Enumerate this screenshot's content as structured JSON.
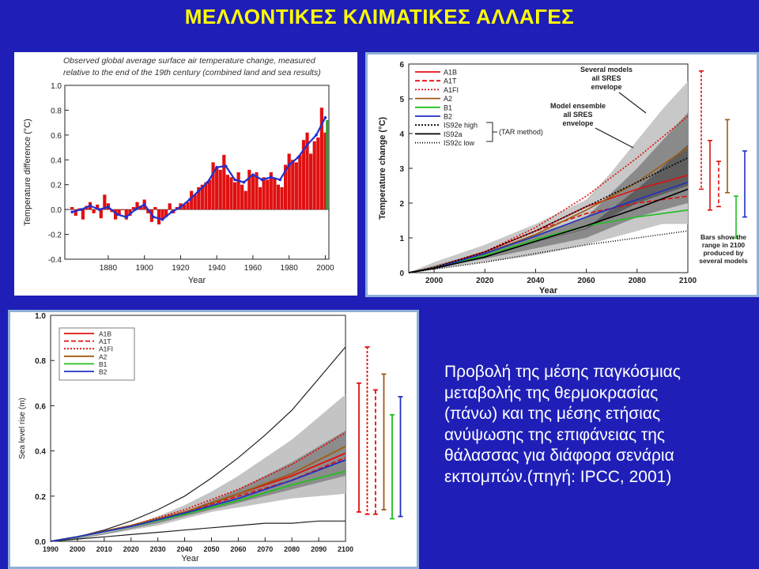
{
  "page": {
    "title": "ΜΕΛΛΟΝΤΙΚΕΣ ΚΛΙΜΑΤΙΚΕΣ ΑΛΛΑΓΕΣ",
    "caption_lines": [
      "Προβολή της μέσης παγκόσμιας",
      "μεταβολής της θερμοκρασίας",
      "(πάνω) και της μέσης ετήσιας",
      "ανύψωσης της επιφάνειας της",
      "θάλασσας για διάφορα σενάρια",
      "εκπομπών.(πηγή: IPCC, 2001)"
    ]
  },
  "colors": {
    "background": "#1f1fb8",
    "title": "#ffff00",
    "caption": "#ffffff",
    "bar": "#e01010",
    "smooth": "#2030d0"
  },
  "chart_data": [
    {
      "type": "bar",
      "title": "Observed global average surface air temperature change, measured relative to the end of the 19th century (combined land and sea results)",
      "title_lines": [
        "Observed global average surface air temperature change, measured",
        "relative to the end of the 19th century (combined land and sea results)"
      ],
      "xlabel": "Year",
      "ylabel": "Temperature difference (°C)",
      "xlim": [
        1856,
        2002
      ],
      "ylim": [
        -0.4,
        1.0
      ],
      "xticks": [
        1880,
        1900,
        1920,
        1940,
        1960,
        1980,
        2000
      ],
      "yticks": [
        "-0.4",
        "-0.2",
        "0.0",
        "0.2",
        "0.4",
        "0.6",
        "0.8",
        "1.0"
      ],
      "bar_values": [
        {
          "x": 1860,
          "y": 0.02
        },
        {
          "x": 1862,
          "y": -0.05
        },
        {
          "x": 1864,
          "y": 0.01
        },
        {
          "x": 1866,
          "y": -0.08
        },
        {
          "x": 1868,
          "y": 0.03
        },
        {
          "x": 1870,
          "y": 0.06
        },
        {
          "x": 1872,
          "y": -0.03
        },
        {
          "x": 1874,
          "y": 0.04
        },
        {
          "x": 1876,
          "y": -0.07
        },
        {
          "x": 1878,
          "y": 0.12
        },
        {
          "x": 1880,
          "y": 0.05
        },
        {
          "x": 1882,
          "y": -0.02
        },
        {
          "x": 1884,
          "y": -0.08
        },
        {
          "x": 1886,
          "y": -0.05
        },
        {
          "x": 1888,
          "y": 0.0
        },
        {
          "x": 1890,
          "y": -0.08
        },
        {
          "x": 1892,
          "y": -0.05
        },
        {
          "x": 1894,
          "y": 0.02
        },
        {
          "x": 1896,
          "y": 0.06
        },
        {
          "x": 1898,
          "y": 0.03
        },
        {
          "x": 1900,
          "y": 0.08
        },
        {
          "x": 1902,
          "y": -0.03
        },
        {
          "x": 1904,
          "y": -0.1
        },
        {
          "x": 1906,
          "y": 0.02
        },
        {
          "x": 1908,
          "y": -0.12
        },
        {
          "x": 1910,
          "y": -0.08
        },
        {
          "x": 1912,
          "y": -0.06
        },
        {
          "x": 1914,
          "y": 0.05
        },
        {
          "x": 1916,
          "y": -0.03
        },
        {
          "x": 1918,
          "y": 0.02
        },
        {
          "x": 1920,
          "y": 0.05
        },
        {
          "x": 1922,
          "y": 0.04
        },
        {
          "x": 1924,
          "y": 0.06
        },
        {
          "x": 1926,
          "y": 0.15
        },
        {
          "x": 1928,
          "y": 0.12
        },
        {
          "x": 1930,
          "y": 0.18
        },
        {
          "x": 1932,
          "y": 0.2
        },
        {
          "x": 1934,
          "y": 0.22
        },
        {
          "x": 1936,
          "y": 0.24
        },
        {
          "x": 1938,
          "y": 0.38
        },
        {
          "x": 1940,
          "y": 0.34
        },
        {
          "x": 1942,
          "y": 0.32
        },
        {
          "x": 1944,
          "y": 0.44
        },
        {
          "x": 1946,
          "y": 0.28
        },
        {
          "x": 1948,
          "y": 0.26
        },
        {
          "x": 1950,
          "y": 0.22
        },
        {
          "x": 1952,
          "y": 0.3
        },
        {
          "x": 1954,
          "y": 0.2
        },
        {
          "x": 1956,
          "y": 0.15
        },
        {
          "x": 1958,
          "y": 0.32
        },
        {
          "x": 1960,
          "y": 0.28
        },
        {
          "x": 1962,
          "y": 0.3
        },
        {
          "x": 1964,
          "y": 0.18
        },
        {
          "x": 1966,
          "y": 0.26
        },
        {
          "x": 1968,
          "y": 0.24
        },
        {
          "x": 1970,
          "y": 0.3
        },
        {
          "x": 1972,
          "y": 0.25
        },
        {
          "x": 1974,
          "y": 0.2
        },
        {
          "x": 1976,
          "y": 0.18
        },
        {
          "x": 1978,
          "y": 0.36
        },
        {
          "x": 1980,
          "y": 0.45
        },
        {
          "x": 1982,
          "y": 0.4
        },
        {
          "x": 1984,
          "y": 0.38
        },
        {
          "x": 1986,
          "y": 0.44
        },
        {
          "x": 1988,
          "y": 0.56
        },
        {
          "x": 1990,
          "y": 0.62
        },
        {
          "x": 1992,
          "y": 0.45
        },
        {
          "x": 1994,
          "y": 0.55
        },
        {
          "x": 1996,
          "y": 0.58
        },
        {
          "x": 1998,
          "y": 0.82
        },
        {
          "x": 2000,
          "y": 0.62
        }
      ],
      "smoothed": [
        {
          "x": 1860,
          "y": -0.02
        },
        {
          "x": 1865,
          "y": 0.0
        },
        {
          "x": 1870,
          "y": 0.03
        },
        {
          "x": 1875,
          "y": 0.0
        },
        {
          "x": 1880,
          "y": 0.02
        },
        {
          "x": 1885,
          "y": -0.04
        },
        {
          "x": 1890,
          "y": -0.06
        },
        {
          "x": 1895,
          "y": 0.0
        },
        {
          "x": 1900,
          "y": 0.04
        },
        {
          "x": 1905,
          "y": -0.06
        },
        {
          "x": 1910,
          "y": -0.08
        },
        {
          "x": 1915,
          "y": -0.02
        },
        {
          "x": 1920,
          "y": 0.02
        },
        {
          "x": 1925,
          "y": 0.08
        },
        {
          "x": 1930,
          "y": 0.15
        },
        {
          "x": 1935,
          "y": 0.22
        },
        {
          "x": 1940,
          "y": 0.34
        },
        {
          "x": 1945,
          "y": 0.35
        },
        {
          "x": 1950,
          "y": 0.24
        },
        {
          "x": 1955,
          "y": 0.22
        },
        {
          "x": 1960,
          "y": 0.28
        },
        {
          "x": 1965,
          "y": 0.24
        },
        {
          "x": 1970,
          "y": 0.26
        },
        {
          "x": 1975,
          "y": 0.24
        },
        {
          "x": 1980,
          "y": 0.36
        },
        {
          "x": 1985,
          "y": 0.42
        },
        {
          "x": 1990,
          "y": 0.52
        },
        {
          "x": 1995,
          "y": 0.6
        },
        {
          "x": 2000,
          "y": 0.74
        }
      ],
      "last_bar": {
        "x": 2001,
        "y": 0.72,
        "color": "#30a030"
      }
    },
    {
      "type": "line",
      "xlabel": "Year",
      "ylabel": "Temperature change (°C)",
      "xlim": [
        1990,
        2100
      ],
      "ylim": [
        0,
        6
      ],
      "xticks": [
        2000,
        2020,
        2040,
        2060,
        2080,
        2100
      ],
      "yticks": [
        0,
        1,
        2,
        3,
        4,
        5,
        6
      ],
      "legend": [
        {
          "name": "A1B",
          "color": "#e01010",
          "dash": ""
        },
        {
          "name": "A1T",
          "color": "#e01010",
          "dash": "6,3"
        },
        {
          "name": "A1FI",
          "color": "#e01010",
          "dash": "2,2"
        },
        {
          "name": "A2",
          "color": "#a05a10",
          "dash": ""
        },
        {
          "name": "B1",
          "color": "#20c020",
          "dash": ""
        },
        {
          "name": "B2",
          "color": "#2030c0",
          "dash": ""
        },
        {
          "name": "IS92e high",
          "color": "#000000",
          "dash": "2,2"
        },
        {
          "name": "IS92a",
          "color": "#000000",
          "dash": ""
        },
        {
          "name": "IS92c low",
          "color": "#000000",
          "dash": "1,2"
        }
      ],
      "legend_note": "(TAR method)",
      "annotations": [
        "Several models all SRES envelope",
        "Model ensemble all SRES envelope",
        "Bars show the range in 2100 produced by several models"
      ],
      "outer_envelope": {
        "upper": [
          0,
          0.3,
          0.8,
          1.4,
          2.1,
          2.9,
          3.8,
          4.7,
          5.5
        ],
        "lower": [
          0,
          0.1,
          0.3,
          0.5,
          0.8,
          1.0,
          1.2,
          1.4,
          1.4
        ]
      },
      "inner_envelope": {
        "upper": [
          0,
          0.2,
          0.6,
          1.1,
          1.6,
          2.3,
          3.0,
          3.8,
          4.6
        ],
        "lower": [
          0,
          0.15,
          0.4,
          0.7,
          1.0,
          1.3,
          1.6,
          1.8,
          2.0
        ]
      },
      "envelope_x": [
        1990,
        2000,
        2020,
        2040,
        2060,
        2070,
        2080,
        2090,
        2100
      ],
      "series": [
        {
          "name": "A1B",
          "x": [
            1990,
            2000,
            2020,
            2040,
            2060,
            2080,
            2100
          ],
          "values": [
            0,
            0.15,
            0.6,
            1.2,
            1.9,
            2.4,
            2.8
          ]
        },
        {
          "name": "A1T",
          "x": [
            1990,
            2000,
            2020,
            2040,
            2060,
            2080,
            2100
          ],
          "values": [
            0,
            0.15,
            0.6,
            1.2,
            1.7,
            2.0,
            2.2
          ]
        },
        {
          "name": "A1FI",
          "x": [
            1990,
            2000,
            2020,
            2040,
            2060,
            2080,
            2100
          ],
          "values": [
            0,
            0.15,
            0.6,
            1.3,
            2.2,
            3.3,
            4.5
          ]
        },
        {
          "name": "A2",
          "x": [
            1990,
            2000,
            2020,
            2040,
            2060,
            2080,
            2100
          ],
          "values": [
            0,
            0.15,
            0.55,
            1.1,
            1.8,
            2.6,
            3.6
          ]
        },
        {
          "name": "B1",
          "x": [
            1990,
            2000,
            2020,
            2040,
            2060,
            2080,
            2100
          ],
          "values": [
            0,
            0.12,
            0.5,
            0.95,
            1.35,
            1.6,
            1.8
          ]
        },
        {
          "name": "B2",
          "x": [
            1990,
            2000,
            2020,
            2040,
            2060,
            2080,
            2100
          ],
          "values": [
            0,
            0.13,
            0.55,
            1.05,
            1.6,
            2.1,
            2.6
          ]
        },
        {
          "name": "IS92e high",
          "x": [
            1990,
            2000,
            2020,
            2040,
            2060,
            2080,
            2100
          ],
          "values": [
            0,
            0.15,
            0.6,
            1.2,
            1.9,
            2.6,
            3.3
          ]
        },
        {
          "name": "IS92a",
          "x": [
            1990,
            2000,
            2020,
            2040,
            2060,
            2080,
            2100
          ],
          "values": [
            0,
            0.12,
            0.45,
            0.9,
            1.35,
            1.85,
            2.4
          ]
        },
        {
          "name": "IS92c low",
          "x": [
            1990,
            2000,
            2020,
            2040,
            2060,
            2080,
            2100
          ],
          "values": [
            0,
            0.1,
            0.3,
            0.55,
            0.8,
            1.0,
            1.2
          ]
        }
      ],
      "range_bars_2100": [
        {
          "name": "A1FI",
          "color": "#e01010",
          "dash": "3,2",
          "low": 2.4,
          "high": 5.8
        },
        {
          "name": "A1B",
          "color": "#e01010",
          "dash": "",
          "low": 1.8,
          "high": 3.8
        },
        {
          "name": "A1T",
          "color": "#e01010",
          "dash": "5,3",
          "low": 1.9,
          "high": 3.2
        },
        {
          "name": "A2",
          "color": "#a05a10",
          "dash": "",
          "low": 2.3,
          "high": 4.4
        },
        {
          "name": "B1",
          "color": "#20c020",
          "dash": "",
          "low": 1.0,
          "high": 2.2
        },
        {
          "name": "B2",
          "color": "#2030c0",
          "dash": "",
          "low": 1.6,
          "high": 3.5
        }
      ]
    },
    {
      "type": "line",
      "xlabel": "Year",
      "ylabel": "Sea level rise (m)",
      "xlim": [
        1990,
        2100
      ],
      "ylim": [
        0,
        1.0
      ],
      "xticks": [
        1990,
        2000,
        2010,
        2020,
        2030,
        2040,
        2050,
        2060,
        2070,
        2080,
        2090,
        2100
      ],
      "yticks": [
        "0.0",
        "0.2",
        "0.4",
        "0.6",
        "0.8",
        "1.0"
      ],
      "legend": [
        {
          "name": "A1B",
          "color": "#e01010",
          "dash": ""
        },
        {
          "name": "A1T",
          "color": "#e01010",
          "dash": "6,3"
        },
        {
          "name": "A1FI",
          "color": "#e01010",
          "dash": "2,2"
        },
        {
          "name": "A2",
          "color": "#a05a10",
          "dash": ""
        },
        {
          "name": "B1",
          "color": "#20c020",
          "dash": ""
        },
        {
          "name": "B2",
          "color": "#2030c0",
          "dash": ""
        }
      ],
      "envelope_x": [
        1990,
        2000,
        2010,
        2020,
        2030,
        2040,
        2050,
        2060,
        2070,
        2080,
        2090,
        2100
      ],
      "outer_envelope": {
        "upper": [
          0,
          0.02,
          0.05,
          0.09,
          0.14,
          0.2,
          0.28,
          0.37,
          0.47,
          0.58,
          0.72,
          0.86
        ],
        "lower": [
          0,
          0.01,
          0.02,
          0.03,
          0.04,
          0.05,
          0.06,
          0.07,
          0.08,
          0.08,
          0.09,
          0.09
        ]
      },
      "gray_outer": {
        "upper": [
          0,
          0.02,
          0.04,
          0.07,
          0.11,
          0.16,
          0.22,
          0.29,
          0.37,
          0.45,
          0.55,
          0.65
        ],
        "lower": [
          0,
          0.01,
          0.03,
          0.05,
          0.07,
          0.1,
          0.13,
          0.15,
          0.17,
          0.19,
          0.2,
          0.21
        ]
      },
      "gray_inner": {
        "upper": [
          0,
          0.015,
          0.035,
          0.06,
          0.09,
          0.13,
          0.18,
          0.23,
          0.29,
          0.35,
          0.42,
          0.49
        ],
        "lower": [
          0,
          0.012,
          0.03,
          0.055,
          0.08,
          0.11,
          0.14,
          0.17,
          0.2,
          0.23,
          0.26,
          0.29
        ]
      },
      "series": [
        {
          "name": "A1B",
          "x": [
            1990,
            2000,
            2020,
            2040,
            2060,
            2080,
            2100
          ],
          "values": [
            0,
            0.02,
            0.07,
            0.13,
            0.21,
            0.29,
            0.39
          ]
        },
        {
          "name": "A1T",
          "x": [
            1990,
            2000,
            2020,
            2040,
            2060,
            2080,
            2100
          ],
          "values": [
            0,
            0.02,
            0.07,
            0.13,
            0.2,
            0.27,
            0.37
          ]
        },
        {
          "name": "A1FI",
          "x": [
            1990,
            2000,
            2020,
            2040,
            2060,
            2080,
            2100
          ],
          "values": [
            0,
            0.02,
            0.07,
            0.14,
            0.23,
            0.34,
            0.48
          ]
        },
        {
          "name": "A2",
          "x": [
            1990,
            2000,
            2020,
            2040,
            2060,
            2080,
            2100
          ],
          "values": [
            0,
            0.02,
            0.07,
            0.13,
            0.21,
            0.3,
            0.42
          ]
        },
        {
          "name": "B1",
          "x": [
            1990,
            2000,
            2020,
            2040,
            2060,
            2080,
            2100
          ],
          "values": [
            0,
            0.02,
            0.065,
            0.12,
            0.18,
            0.25,
            0.31
          ]
        },
        {
          "name": "B2",
          "x": [
            1990,
            2000,
            2020,
            2040,
            2060,
            2080,
            2100
          ],
          "values": [
            0,
            0.02,
            0.066,
            0.125,
            0.19,
            0.27,
            0.36
          ]
        }
      ],
      "range_bars_2100": [
        {
          "name": "A1B",
          "color": "#e01010",
          "dash": "",
          "low": 0.13,
          "high": 0.7
        },
        {
          "name": "A1FI",
          "color": "#e01010",
          "dash": "3,2",
          "low": 0.12,
          "high": 0.86
        },
        {
          "name": "A1T",
          "color": "#e01010",
          "dash": "5,3",
          "low": 0.12,
          "high": 0.67
        },
        {
          "name": "A2",
          "color": "#a05a10",
          "dash": "",
          "low": 0.14,
          "high": 0.74
        },
        {
          "name": "B1",
          "color": "#20c020",
          "dash": "",
          "low": 0.1,
          "high": 0.56
        },
        {
          "name": "B2",
          "color": "#2030c0",
          "dash": "",
          "low": 0.11,
          "high": 0.64
        }
      ]
    }
  ]
}
